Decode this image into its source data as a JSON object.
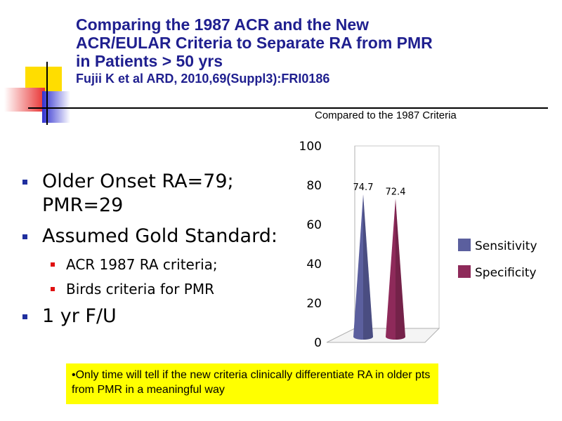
{
  "slide": {
    "title_lines": [
      "Comparing the 1987 ACR and the New",
      "ACR/EULAR Criteria to Separate RA from PMR",
      "in Patients > 50 yrs"
    ],
    "citation": "Fujii K et al ARD, 2010,69(Suppl3):FRI0186",
    "subtitle": "Compared to the 1987 Criteria",
    "bullets": {
      "b1": "Older Onset RA=79; PMR=29",
      "b2": "Assumed Gold Standard:",
      "b2a": "ACR 1987 RA criteria;",
      "b2b": "Birds criteria for PMR",
      "b3": "1 yr F/U"
    },
    "note": "•Only time will tell if the new criteria clinically differentiate RA in older pts from PMR in a meaningful way"
  },
  "chart_data": {
    "type": "bar",
    "subtype": "3d-cone",
    "categories": [
      ""
    ],
    "series": [
      {
        "name": "Sensitivity",
        "values": [
          74.7
        ],
        "color": "#5b5f9e"
      },
      {
        "name": "Specificity",
        "values": [
          72.4
        ],
        "color": "#8e2a5a"
      }
    ],
    "data_labels": [
      "74.7",
      "72.4"
    ],
    "ylim": [
      0,
      100
    ],
    "yticks": [
      "0",
      "20",
      "40",
      "60",
      "80",
      "100"
    ],
    "legend": "right",
    "grid": false
  },
  "colors": {
    "title": "#1f1f8f",
    "note_background": "#ffff00",
    "bullet_primary": "#1f2f9f",
    "bullet_secondary": "#e01010"
  }
}
